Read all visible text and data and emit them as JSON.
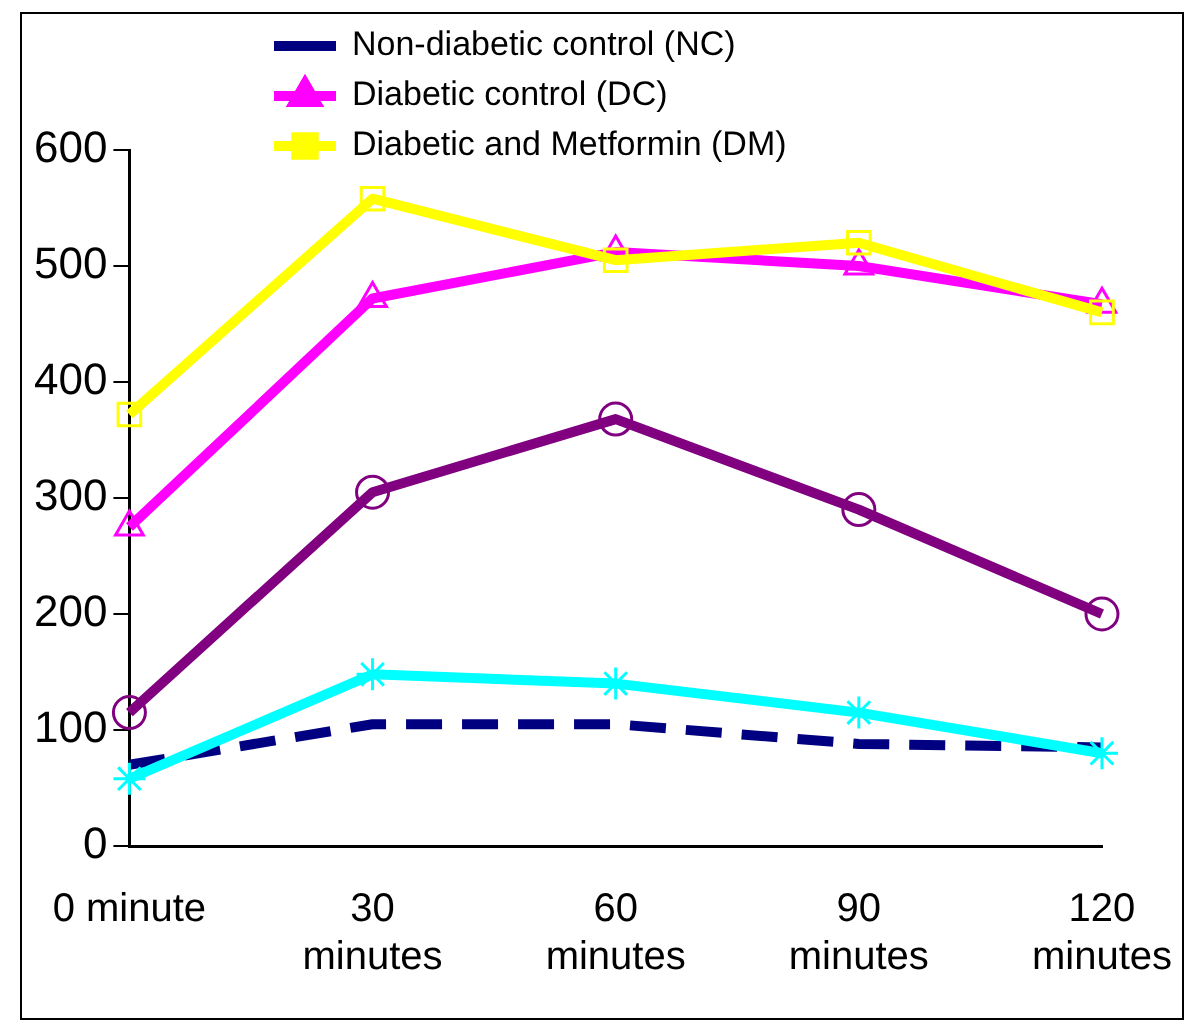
{
  "chart_data": {
    "type": "line",
    "categories": [
      "0 minute",
      "30\nminutes",
      "60\nminutes",
      "90\nminutes",
      "120\nminutes"
    ],
    "ylim": [
      0,
      600
    ],
    "yticks": [
      0,
      100,
      200,
      300,
      400,
      500,
      600
    ],
    "grid": false,
    "legend": "top",
    "series": [
      {
        "name": "Non-diabetic control (NC)",
        "color": "#000080",
        "values": [
          70,
          105,
          105,
          88,
          85
        ],
        "marker": "none",
        "line_style": "dashed"
      },
      {
        "name": "Diabetic control (DC)",
        "color": "#ff00ff",
        "values": [
          275,
          472,
          512,
          500,
          467
        ],
        "marker": "triangle",
        "line_style": "solid"
      },
      {
        "name": "Diabetic and Metformin (DM)",
        "color": "#ffff00",
        "values": [
          372,
          558,
          505,
          520,
          460
        ],
        "marker": "square",
        "line_style": "solid"
      },
      {
        "color": "#800080",
        "values": [
          115,
          305,
          368,
          290,
          200
        ],
        "marker": "circle",
        "line_style": "solid"
      },
      {
        "color": "#00ffff",
        "values": [
          58,
          148,
          140,
          115,
          80
        ],
        "marker": "cross",
        "line_style": "solid"
      }
    ]
  }
}
